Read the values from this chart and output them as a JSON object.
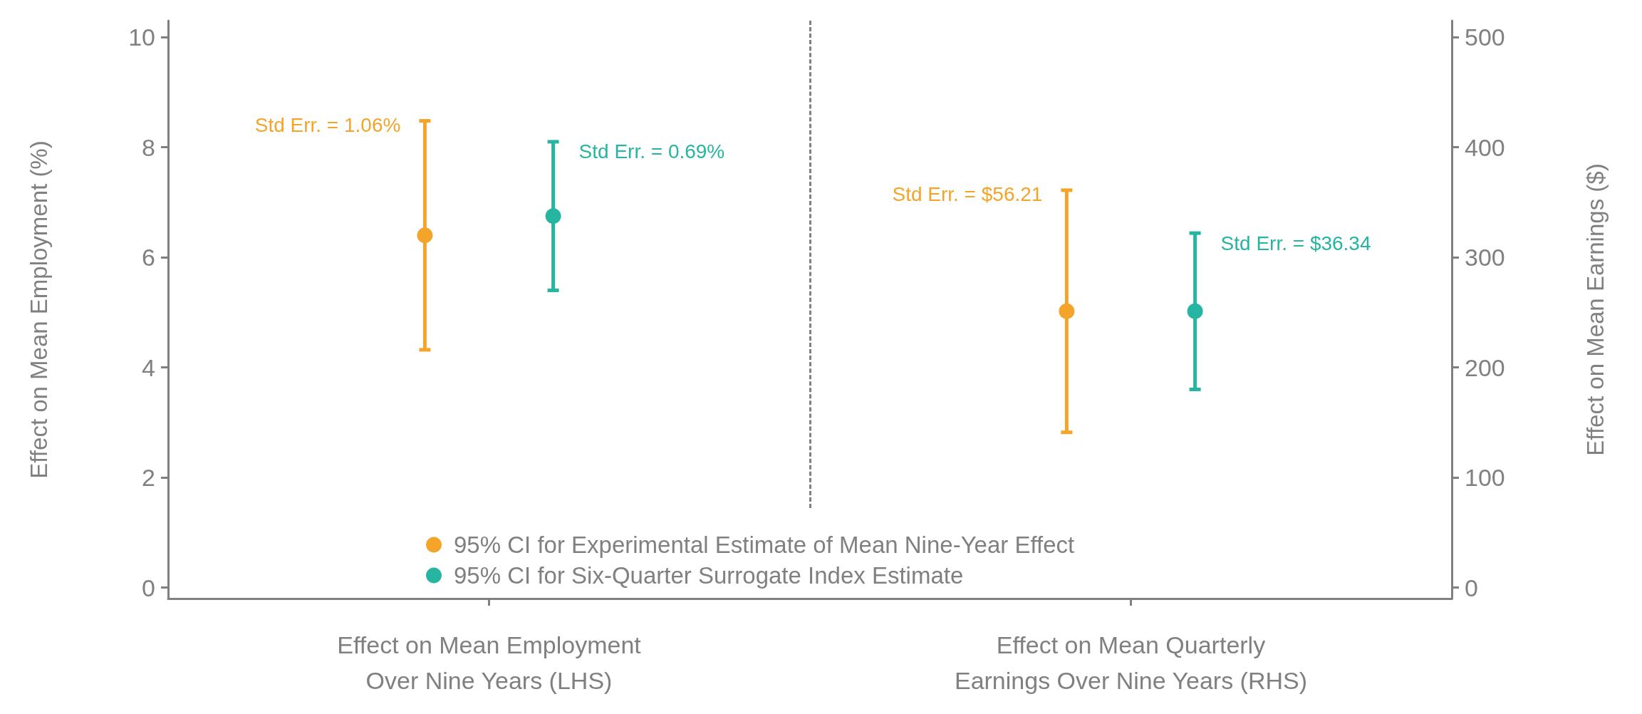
{
  "chart_data": {
    "type": "scatter",
    "categories": [
      "Effect on Mean Employment\nOver Nine Years (LHS)",
      "Effect on Mean Quarterly\nEarnings Over Nine Years (RHS)"
    ],
    "ylabel": "Effect on Mean Employment (%)",
    "y2label": "Effect on Mean Earnings ($)",
    "ylim": [
      -0.2,
      10.3
    ],
    "yticks": [
      0,
      2,
      4,
      6,
      8,
      10
    ],
    "y2lim": [
      -10,
      515
    ],
    "y2ticks": [
      0,
      100,
      200,
      300,
      400,
      500
    ],
    "series": [
      {
        "name": "95% CI for Experimental Estimate of Mean Nine-Year Effect",
        "color": "#f5a42a",
        "axis": "y",
        "values": [
          6.4,
          null
        ],
        "errors": [
          [
            4.32,
            8.48
          ],
          null
        ]
      },
      {
        "name": "95% CI for Six-Quarter Surrogate Index Estimate",
        "color": "#26b5a0",
        "axis": "y",
        "values": [
          6.75,
          null
        ],
        "errors": [
          [
            5.4,
            8.1
          ],
          null
        ]
      },
      {
        "color": "#f5a42a",
        "axis": "y2",
        "values": [
          null,
          251
        ],
        "errors": [
          null,
          [
            141,
            361
          ]
        ]
      },
      {
        "color": "#26b5a0",
        "axis": "y2",
        "values": [
          null,
          251
        ],
        "errors": [
          null,
          [
            180,
            322
          ]
        ]
      }
    ],
    "annotations": [
      "Std Err. = 1.06%",
      "Std Err. = 0.69%",
      "Std Err. = $56.21",
      "Std Err. = $36.34"
    ],
    "marker": "circle",
    "legend": "bottom"
  }
}
